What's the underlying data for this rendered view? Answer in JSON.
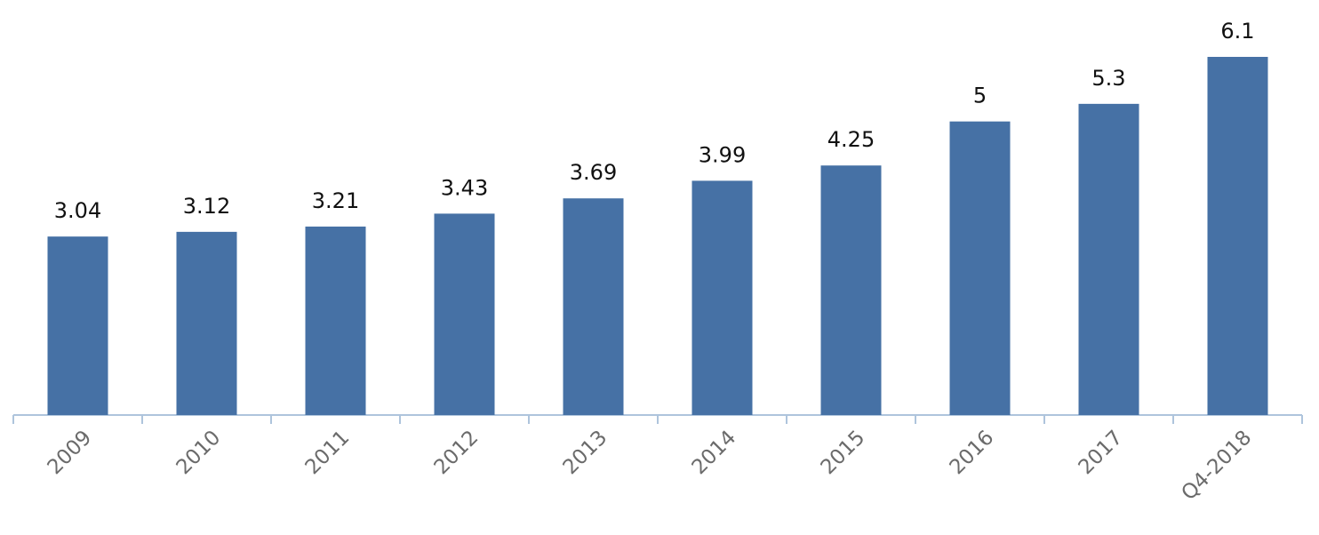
{
  "chart_data": {
    "type": "bar",
    "categories": [
      "2009",
      "2010",
      "2011",
      "2012",
      "2013",
      "2014",
      "2015",
      "2016",
      "2017",
      "Q4-2018"
    ],
    "values": [
      3.04,
      3.12,
      3.21,
      3.43,
      3.69,
      3.99,
      4.25,
      5,
      5.3,
      6.1
    ],
    "color": "#4671a5"
  }
}
